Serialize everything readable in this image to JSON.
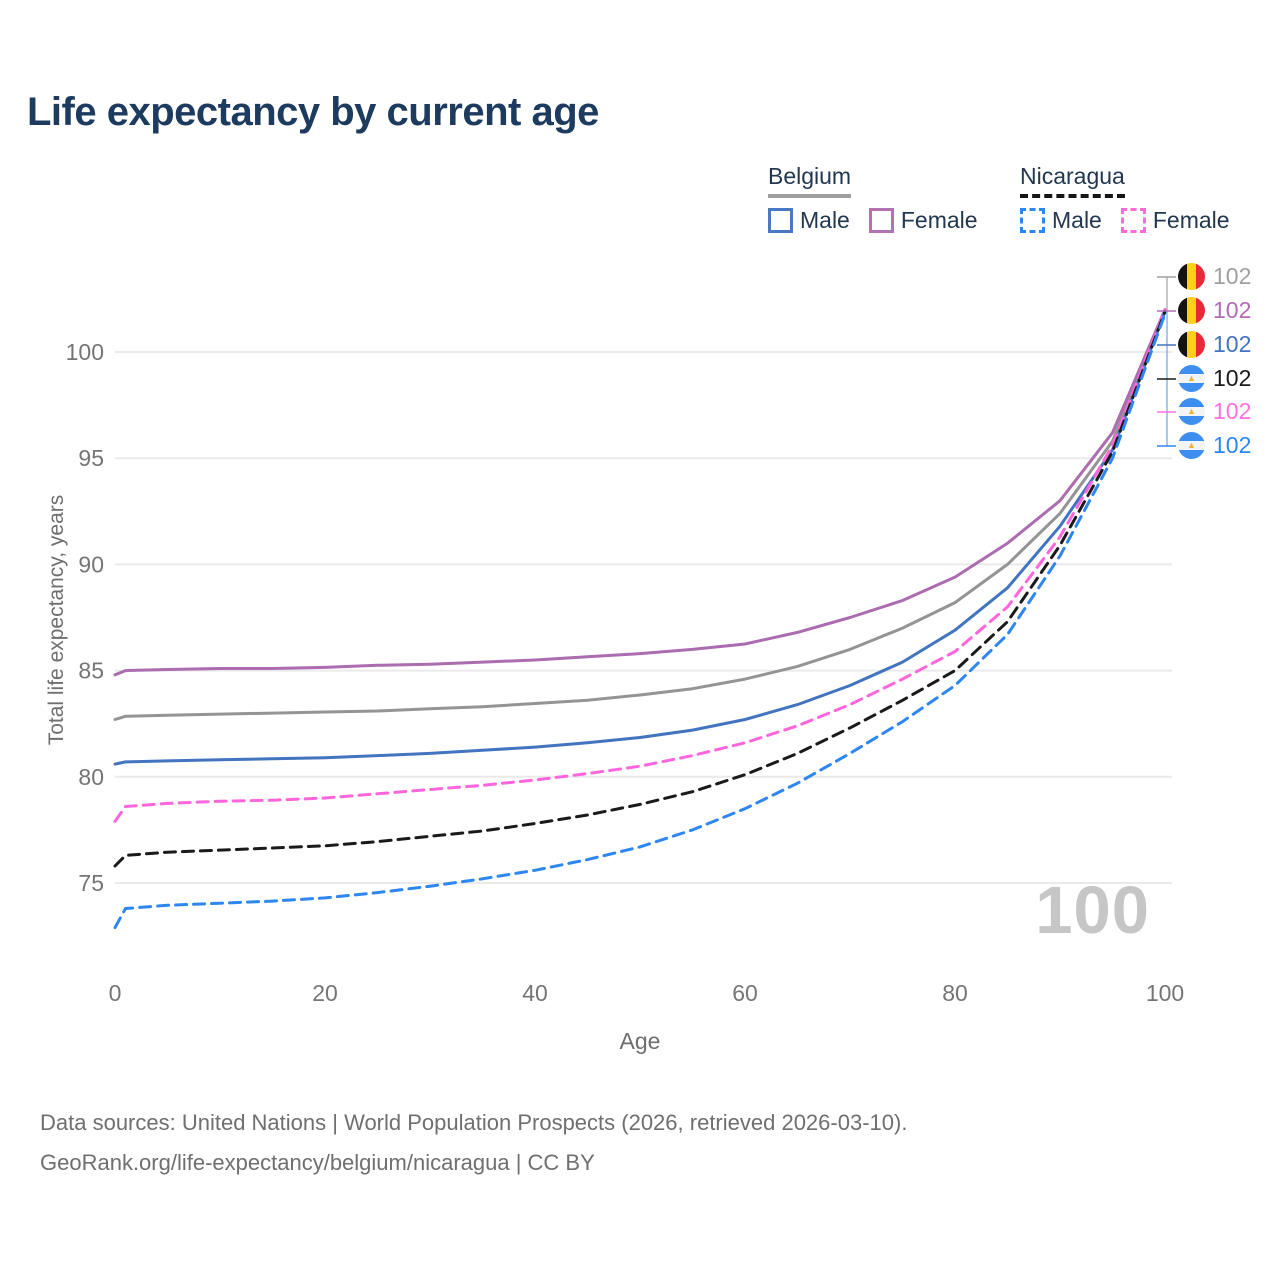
{
  "title": "Life expectancy by current age",
  "legend": {
    "groups": [
      {
        "country": "Belgium",
        "line_style": "solid",
        "underline_color": "#9e9e9e",
        "items": [
          {
            "label": "Male",
            "color": "#4a79c4",
            "dashed": false
          },
          {
            "label": "Female",
            "color": "#b273b5",
            "dashed": false
          }
        ]
      },
      {
        "country": "Nicaragua",
        "line_style": "dashed",
        "underline_color": "#161616",
        "items": [
          {
            "label": "Male",
            "color": "#2e86f0",
            "dashed": true
          },
          {
            "label": "Female",
            "color": "#ff6ad9",
            "dashed": true
          }
        ]
      }
    ]
  },
  "chart_data": {
    "type": "line",
    "title": "Life expectancy by current age",
    "xlabel": "Age",
    "ylabel": "Total life expectancy, years",
    "xlim": [
      0,
      100
    ],
    "ylim": [
      75,
      100
    ],
    "xticks": [
      0,
      20,
      40,
      60,
      80,
      100
    ],
    "yticks": [
      75,
      80,
      85,
      90,
      95,
      100
    ],
    "grid": "horizontal-only",
    "legend_position": "top-right",
    "x": [
      0,
      1,
      5,
      10,
      15,
      20,
      25,
      30,
      35,
      40,
      45,
      50,
      55,
      60,
      65,
      70,
      75,
      80,
      85,
      90,
      95,
      100
    ],
    "series": [
      {
        "name": "Belgium Both sexes",
        "country": "Belgium",
        "sex": "Both",
        "color": "#949494",
        "dashed": false,
        "values": [
          82.7,
          82.85,
          82.9,
          82.95,
          83.0,
          83.05,
          83.1,
          83.2,
          83.3,
          83.45,
          83.6,
          83.85,
          84.15,
          84.6,
          85.2,
          86.0,
          87.0,
          88.2,
          90.0,
          92.4,
          95.8,
          101.95
        ]
      },
      {
        "name": "Belgium Female",
        "country": "Belgium",
        "sex": "Female",
        "color": "#ab6cb0",
        "dashed": false,
        "values": [
          84.8,
          85.0,
          85.05,
          85.1,
          85.1,
          85.15,
          85.25,
          85.3,
          85.4,
          85.5,
          85.65,
          85.8,
          86.0,
          86.25,
          86.8,
          87.5,
          88.3,
          89.4,
          91.0,
          93.0,
          96.2,
          102.0
        ]
      },
      {
        "name": "Belgium Male",
        "country": "Belgium",
        "sex": "Male",
        "color": "#4274bf",
        "dashed": false,
        "values": [
          80.6,
          80.7,
          80.75,
          80.8,
          80.85,
          80.9,
          81.0,
          81.1,
          81.25,
          81.4,
          81.6,
          81.85,
          82.2,
          82.7,
          83.4,
          84.3,
          85.4,
          86.9,
          88.9,
          91.8,
          95.4,
          101.9
        ]
      },
      {
        "name": "Nicaragua Female",
        "country": "Nicaragua",
        "sex": "Female",
        "color": "#ff66dd",
        "dashed": true,
        "values": [
          77.9,
          78.6,
          78.75,
          78.85,
          78.9,
          79.0,
          79.2,
          79.4,
          79.6,
          79.85,
          80.15,
          80.5,
          81.0,
          81.6,
          82.4,
          83.4,
          84.6,
          85.9,
          88.0,
          91.3,
          95.6,
          102.0
        ]
      },
      {
        "name": "Nicaragua Both sexes",
        "country": "Nicaragua",
        "sex": "Both",
        "color": "#1a1a1a",
        "dashed": true,
        "values": [
          75.8,
          76.3,
          76.45,
          76.55,
          76.65,
          76.75,
          76.95,
          77.2,
          77.45,
          77.8,
          78.2,
          78.7,
          79.3,
          80.1,
          81.1,
          82.3,
          83.6,
          85.0,
          87.3,
          90.9,
          95.3,
          101.9
        ]
      },
      {
        "name": "Nicaragua Male",
        "country": "Nicaragua",
        "sex": "Male",
        "color": "#2e86f0",
        "dashed": true,
        "values": [
          72.9,
          73.8,
          73.95,
          74.05,
          74.15,
          74.3,
          74.55,
          74.85,
          75.2,
          75.6,
          76.1,
          76.7,
          77.5,
          78.5,
          79.7,
          81.1,
          82.6,
          84.3,
          86.7,
          90.4,
          95.0,
          101.8
        ]
      }
    ]
  },
  "end_labels": [
    {
      "flag": "belgium",
      "country": "Belgium",
      "series": "Both sexes",
      "value": "102",
      "color": "#a0a0a0"
    },
    {
      "flag": "belgium",
      "country": "Belgium",
      "series": "Female",
      "value": "102",
      "color": "#b16cb5"
    },
    {
      "flag": "belgium",
      "country": "Belgium",
      "series": "Male",
      "value": "102",
      "color": "#4274bf"
    },
    {
      "flag": "nicaragua",
      "country": "Nicaragua",
      "series": "Both sexes",
      "value": "102",
      "color": "#1a1a1a"
    },
    {
      "flag": "nicaragua",
      "country": "Nicaragua",
      "series": "Female",
      "value": "102",
      "color": "#ff70e0"
    },
    {
      "flag": "nicaragua",
      "country": "Nicaragua",
      "series": "Male",
      "value": "102",
      "color": "#2e86f0"
    }
  ],
  "watermark": {
    "value": "100"
  },
  "footer": {
    "line1": "Data sources: United Nations | World Population Prospects (2026, retrieved 2026-03-10).",
    "line2": "GeoRank.org/life-expectancy/belgium/nicaragua | CC BY"
  }
}
